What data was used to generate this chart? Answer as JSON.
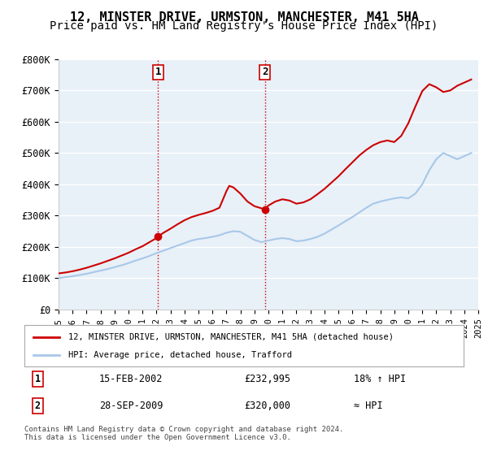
{
  "title": "12, MINSTER DRIVE, URMSTON, MANCHESTER, M41 5HA",
  "subtitle": "Price paid vs. HM Land Registry's House Price Index (HPI)",
  "legend_line1": "12, MINSTER DRIVE, URMSTON, MANCHESTER, M41 5HA (detached house)",
  "legend_line2": "HPI: Average price, detached house, Trafford",
  "annotation1_label": "1",
  "annotation1_date": "15-FEB-2002",
  "annotation1_price": "£232,995",
  "annotation1_hpi": "18% ↑ HPI",
  "annotation2_label": "2",
  "annotation2_date": "28-SEP-2009",
  "annotation2_price": "£320,000",
  "annotation2_hpi": "≈ HPI",
  "footnote": "Contains HM Land Registry data © Crown copyright and database right 2024.\nThis data is licensed under the Open Government Licence v3.0.",
  "hpi_color": "#a8c8e8",
  "price_color": "#cc0000",
  "marker_color": "#cc0000",
  "background_color": "#ffffff",
  "plot_bg_color": "#e8f0f8",
  "grid_color": "#ffffff",
  "ylim": [
    0,
    800000
  ],
  "yticks": [
    0,
    100000,
    200000,
    300000,
    400000,
    500000,
    600000,
    700000,
    800000
  ],
  "ytick_labels": [
    "£0",
    "£100K",
    "£200K",
    "£300K",
    "£400K",
    "£500K",
    "£600K",
    "£700K",
    "£800K"
  ],
  "sale1_x": 2002.12,
  "sale1_y": 232995,
  "sale2_x": 2009.74,
  "sale2_y": 320000,
  "hpi_x": [
    1995,
    1995.5,
    1996,
    1996.5,
    1997,
    1997.5,
    1998,
    1998.5,
    1999,
    1999.5,
    2000,
    2000.5,
    2001,
    2001.5,
    2002,
    2002.5,
    2003,
    2003.5,
    2004,
    2004.5,
    2005,
    2005.5,
    2006,
    2006.5,
    2007,
    2007.5,
    2008,
    2008.5,
    2009,
    2009.5,
    2010,
    2010.5,
    2011,
    2011.5,
    2012,
    2012.5,
    2013,
    2013.5,
    2014,
    2014.5,
    2015,
    2015.5,
    2016,
    2016.5,
    2017,
    2017.5,
    2018,
    2018.5,
    2019,
    2019.5,
    2020,
    2020.5,
    2021,
    2021.5,
    2022,
    2022.5,
    2023,
    2023.5,
    2024,
    2024.5
  ],
  "hpi_y": [
    100000,
    103000,
    106000,
    110000,
    114000,
    119000,
    124000,
    129000,
    135000,
    141000,
    148000,
    156000,
    163000,
    171000,
    180000,
    188000,
    196000,
    204000,
    212000,
    220000,
    225000,
    228000,
    232000,
    237000,
    245000,
    250000,
    248000,
    235000,
    222000,
    215000,
    220000,
    225000,
    228000,
    225000,
    218000,
    220000,
    225000,
    232000,
    242000,
    255000,
    268000,
    282000,
    295000,
    310000,
    325000,
    338000,
    345000,
    350000,
    355000,
    358000,
    355000,
    370000,
    400000,
    445000,
    480000,
    500000,
    490000,
    480000,
    490000,
    500000
  ],
  "price_x": [
    1995,
    1995.5,
    1996,
    1996.5,
    1997,
    1997.5,
    1998,
    1998.5,
    1999,
    1999.5,
    2000,
    2000.5,
    2001,
    2001.5,
    2002,
    2002.12,
    2002.5,
    2003,
    2003.5,
    2004,
    2004.5,
    2005,
    2005.5,
    2006,
    2006.5,
    2007,
    2007.2,
    2007.5,
    2008,
    2008.5,
    2009,
    2009.74,
    2010,
    2010.5,
    2011,
    2011.5,
    2012,
    2012.5,
    2013,
    2013.5,
    2014,
    2014.5,
    2015,
    2015.5,
    2016,
    2016.5,
    2017,
    2017.5,
    2018,
    2018.5,
    2019,
    2019.5,
    2020,
    2020.5,
    2021,
    2021.5,
    2022,
    2022.5,
    2023,
    2023.5,
    2024,
    2024.5
  ],
  "price_y": [
    115000,
    118000,
    122000,
    127000,
    133000,
    140000,
    147000,
    155000,
    163000,
    172000,
    181000,
    192000,
    202000,
    215000,
    228000,
    232995,
    245000,
    258000,
    272000,
    285000,
    295000,
    302000,
    308000,
    315000,
    325000,
    378000,
    395000,
    390000,
    370000,
    345000,
    330000,
    320000,
    332000,
    345000,
    352000,
    348000,
    338000,
    342000,
    352000,
    368000,
    385000,
    405000,
    425000,
    448000,
    470000,
    492000,
    510000,
    525000,
    535000,
    540000,
    535000,
    555000,
    595000,
    648000,
    698000,
    720000,
    710000,
    695000,
    700000,
    715000,
    725000,
    735000
  ],
  "xtick_years": [
    1995,
    1996,
    1997,
    1998,
    1999,
    2000,
    2001,
    2002,
    2003,
    2004,
    2005,
    2006,
    2007,
    2008,
    2009,
    2010,
    2011,
    2012,
    2013,
    2014,
    2015,
    2016,
    2017,
    2018,
    2019,
    2020,
    2021,
    2022,
    2023,
    2024,
    2025
  ],
  "vline1_x": 2002.12,
  "vline2_x": 2009.74,
  "vline_color": "#cc0000",
  "vline_style": ":",
  "title_fontsize": 11,
  "subtitle_fontsize": 10
}
